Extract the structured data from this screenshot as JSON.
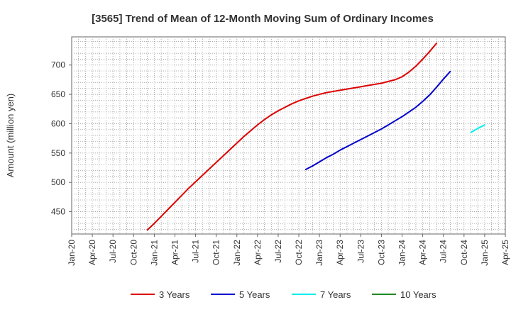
{
  "chart_data": {
    "type": "line",
    "title": "[3565]  Trend of Mean of 12-Month Moving Sum of Ordinary Incomes",
    "ylabel": "Amount (million yen)",
    "xlabel": "",
    "ylim": [
      412,
      748
    ],
    "yticks": [
      450,
      500,
      550,
      600,
      650,
      700
    ],
    "xlim": [
      "2020-01",
      "2025-04"
    ],
    "xticks": [
      "Jan-20",
      "Apr-20",
      "Jul-20",
      "Oct-20",
      "Jan-21",
      "Apr-21",
      "Jul-21",
      "Oct-21",
      "Jan-22",
      "Apr-22",
      "Jul-22",
      "Oct-22",
      "Jan-23",
      "Apr-23",
      "Jul-23",
      "Oct-23",
      "Jan-24",
      "Apr-24",
      "Jul-24",
      "Oct-24",
      "Jan-25",
      "Apr-25"
    ],
    "grid": true,
    "legend_position": "bottom",
    "series": [
      {
        "name": "3 Years",
        "color": "#dd0000",
        "points": [
          [
            "2020-12",
            419
          ],
          [
            "2021-01",
            430
          ],
          [
            "2021-02",
            442
          ],
          [
            "2021-03",
            454
          ],
          [
            "2021-04",
            466
          ],
          [
            "2021-05",
            478
          ],
          [
            "2021-06",
            490
          ],
          [
            "2021-07",
            501
          ],
          [
            "2021-08",
            512
          ],
          [
            "2021-09",
            523
          ],
          [
            "2021-10",
            534
          ],
          [
            "2021-11",
            545
          ],
          [
            "2021-12",
            556
          ],
          [
            "2022-01",
            567
          ],
          [
            "2022-02",
            578
          ],
          [
            "2022-03",
            588
          ],
          [
            "2022-04",
            598
          ],
          [
            "2022-05",
            607
          ],
          [
            "2022-06",
            615
          ],
          [
            "2022-07",
            622
          ],
          [
            "2022-08",
            628
          ],
          [
            "2022-09",
            634
          ],
          [
            "2022-10",
            639
          ],
          [
            "2022-11",
            643
          ],
          [
            "2022-12",
            647
          ],
          [
            "2023-01",
            650
          ],
          [
            "2023-02",
            653
          ],
          [
            "2023-03",
            655
          ],
          [
            "2023-04",
            657
          ],
          [
            "2023-05",
            659
          ],
          [
            "2023-06",
            661
          ],
          [
            "2023-07",
            663
          ],
          [
            "2023-08",
            665
          ],
          [
            "2023-09",
            667
          ],
          [
            "2023-10",
            669
          ],
          [
            "2023-11",
            672
          ],
          [
            "2023-12",
            675
          ],
          [
            "2024-01",
            680
          ],
          [
            "2024-02",
            688
          ],
          [
            "2024-03",
            698
          ],
          [
            "2024-04",
            710
          ],
          [
            "2024-05",
            723
          ],
          [
            "2024-06",
            737
          ]
        ]
      },
      {
        "name": "5 Years",
        "color": "#0000cc",
        "points": [
          [
            "2022-11",
            522
          ],
          [
            "2022-12",
            528
          ],
          [
            "2023-01",
            535
          ],
          [
            "2023-02",
            542
          ],
          [
            "2023-03",
            548
          ],
          [
            "2023-04",
            555
          ],
          [
            "2023-05",
            561
          ],
          [
            "2023-06",
            567
          ],
          [
            "2023-07",
            573
          ],
          [
            "2023-08",
            579
          ],
          [
            "2023-09",
            585
          ],
          [
            "2023-10",
            591
          ],
          [
            "2023-11",
            598
          ],
          [
            "2023-12",
            605
          ],
          [
            "2024-01",
            612
          ],
          [
            "2024-02",
            620
          ],
          [
            "2024-03",
            628
          ],
          [
            "2024-04",
            638
          ],
          [
            "2024-05",
            649
          ],
          [
            "2024-06",
            662
          ],
          [
            "2024-07",
            676
          ],
          [
            "2024-08",
            689
          ]
        ]
      },
      {
        "name": "7 Years",
        "color": "#00eeee",
        "points": [
          [
            "2024-11",
            585
          ],
          [
            "2024-12",
            592
          ],
          [
            "2025-01",
            598
          ]
        ]
      },
      {
        "name": "10 Years",
        "color": "#228822",
        "points": []
      }
    ]
  }
}
